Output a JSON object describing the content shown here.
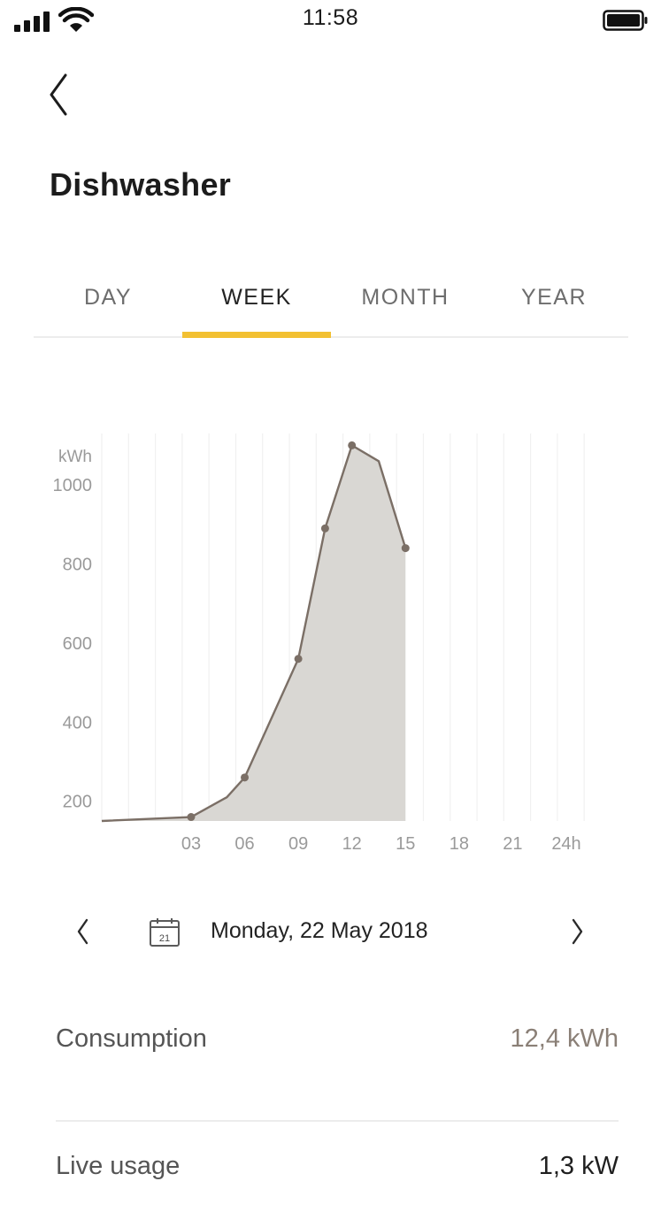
{
  "status_bar": {
    "time": "11:58"
  },
  "header": {
    "title": "Dishwasher"
  },
  "tabs": [
    {
      "label": "DAY"
    },
    {
      "label": "WEEK"
    },
    {
      "label": "MONTH"
    },
    {
      "label": "YEAR"
    }
  ],
  "active_tab": "WEEK",
  "colors": {
    "accent": "#f2c032",
    "line": "#7b6f66",
    "fill": "#d9d7d3",
    "consumption_value": "#8a7f76"
  },
  "icons": {
    "back": "chevron-left-icon",
    "previous": "chevron-left-icon",
    "next": "chevron-right-icon",
    "calendar": "calendar-icon"
  },
  "chart_data": {
    "type": "area",
    "ylabel": "kWh",
    "xlabel": "",
    "x_ticks": [
      "03",
      "06",
      "09",
      "12",
      "15",
      "18",
      "21",
      "24h"
    ],
    "y_ticks": [
      "200",
      "400",
      "600",
      "800",
      "1000"
    ],
    "xlim": [
      -2,
      24
    ],
    "ylim": [
      150,
      1130
    ],
    "grid": "vertical",
    "x": [
      -2,
      3,
      5,
      6,
      9,
      10.5,
      12,
      13.5,
      15
    ],
    "y": [
      150,
      160,
      210,
      260,
      560,
      890,
      1100,
      1060,
      840
    ],
    "markers": [
      3,
      6,
      9,
      10.5,
      12,
      15
    ]
  },
  "date_nav": {
    "date": "Monday, 22 May 2018",
    "calendar_day": "21"
  },
  "stats": {
    "consumption_label": "Consumption",
    "consumption_value": "12,4 kWh",
    "live_label": "Live usage",
    "live_value": "1,3 kW"
  }
}
